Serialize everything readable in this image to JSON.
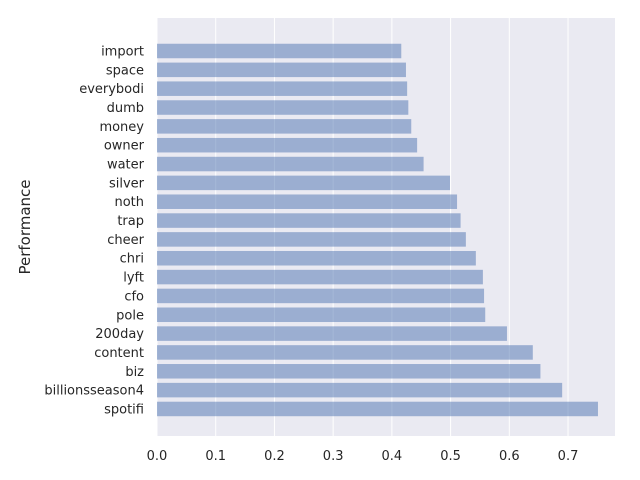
{
  "chart_data": {
    "type": "bar",
    "orientation": "horizontal",
    "title": "",
    "xlabel": "",
    "ylabel": "Performance",
    "categories": [
      "import",
      "space",
      "everybodi",
      "dumb",
      "money",
      "owner",
      "water",
      "silver",
      "noth",
      "trap",
      "cheer",
      "chri",
      "lyft",
      "cfo",
      "pole",
      "200day",
      "content",
      "biz",
      "billionsseason4",
      "spotifi"
    ],
    "values": [
      0.416,
      0.424,
      0.426,
      0.428,
      0.433,
      0.443,
      0.454,
      0.499,
      0.511,
      0.517,
      0.526,
      0.543,
      0.555,
      0.557,
      0.559,
      0.596,
      0.64,
      0.653,
      0.69,
      0.751
    ],
    "xlim": [
      0,
      0.78
    ],
    "xticks": [
      0.0,
      0.1,
      0.2,
      0.3,
      0.4,
      0.5,
      0.6,
      0.7
    ],
    "xtick_labels": [
      "0.0",
      "0.1",
      "0.2",
      "0.3",
      "0.4",
      "0.5",
      "0.6",
      "0.7"
    ],
    "grid": true,
    "colors": {
      "bar": "#4c72b0",
      "background": "#eaeaf2",
      "grid": "#ffffff",
      "text": "#262626"
    }
  }
}
